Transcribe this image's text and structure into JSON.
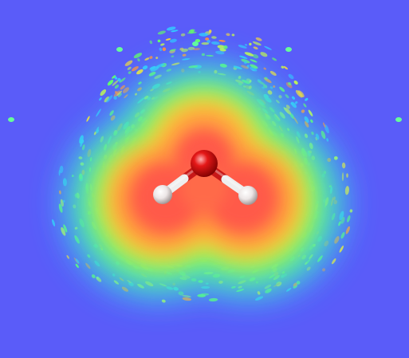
{
  "colors": {
    "background": "#5a5cf9",
    "density_core": "#ff5a4a",
    "density_mid": "#ffcc33",
    "density_outer": "#66ff66",
    "density_edge": "#33ccff",
    "oxygen": "#e01010",
    "hydrogen": "#f2eeee",
    "bond_oxygen_side": "#c81818",
    "bond_hydrogen_side": "#eeeeee"
  },
  "icons": {
    "molecule": "water-molecule-ball-and-stick"
  }
}
